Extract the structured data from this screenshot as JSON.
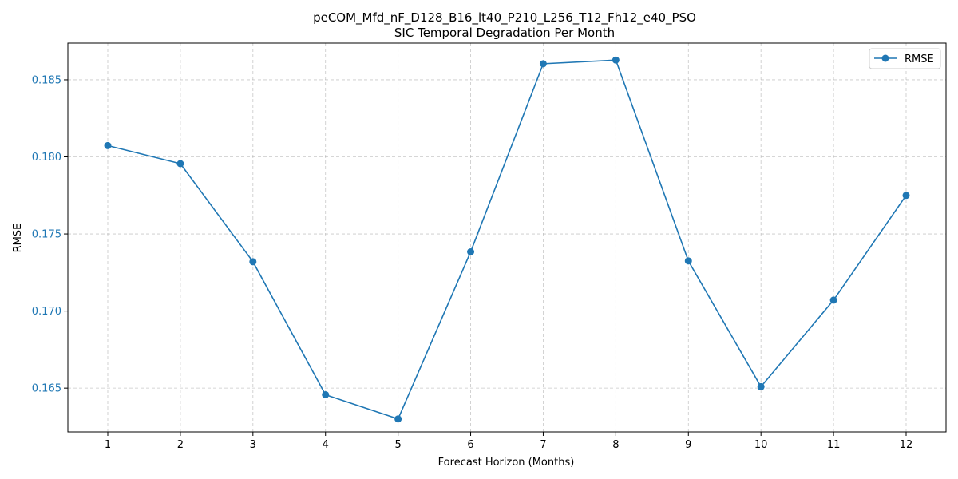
{
  "chart_data": {
    "type": "line",
    "title": "peCOM_Mfd_nF_D128_B16_lt40_P210_L256_T12_Fh12_e40_PSO",
    "subtitle": "SIC Temporal Degradation Per Month",
    "xlabel": "Forecast Horizon (Months)",
    "ylabel": "RMSE",
    "x": [
      1,
      2,
      3,
      4,
      5,
      6,
      7,
      8,
      9,
      10,
      11,
      12
    ],
    "x_tick_labels": [
      "1",
      "2",
      "3",
      "4",
      "5",
      "6",
      "7",
      "8",
      "9",
      "10",
      "11",
      "12"
    ],
    "xlim": [
      0.45,
      12.55
    ],
    "series": [
      {
        "name": "RMSE",
        "color": "#1f77b4",
        "marker": "circle",
        "values": [
          0.18073,
          0.17956,
          0.1732,
          0.16457,
          0.163,
          0.17384,
          0.18604,
          0.18628,
          0.17325,
          0.16509,
          0.17071,
          0.1775
        ]
      }
    ],
    "y_ticks": [
      0.165,
      0.17,
      0.175,
      0.18,
      0.185
    ],
    "y_tick_labels": [
      "0.165",
      "0.170",
      "0.175",
      "0.180",
      "0.185"
    ],
    "ylim": [
      0.16216,
      0.18738
    ],
    "ytick_label_color": "#1f77b4",
    "grid": true,
    "grid_style": "dashed",
    "legend_position": "top-right"
  }
}
